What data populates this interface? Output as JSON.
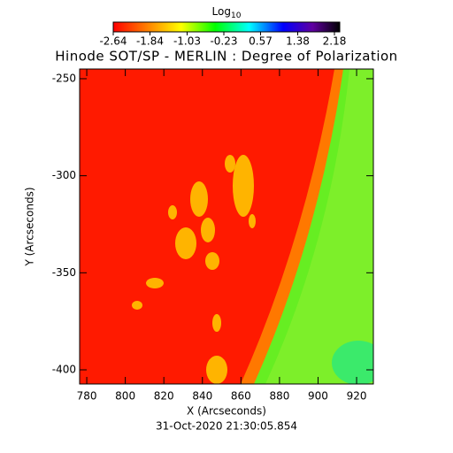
{
  "chart_data": {
    "type": "image",
    "title": "Hinode SOT/SP - MERLIN : Degree of Polarization",
    "colorbar": {
      "label": "Log",
      "label_sub": "10",
      "lim": [
        -2.64,
        2.18
      ],
      "ticks": [
        -2.64,
        -1.84,
        -1.03,
        -0.23,
        0.57,
        1.38,
        2.18
      ]
    },
    "xlabel": "X (Arcseconds)",
    "ylabel": "Y (Arcseconds)",
    "xlim": [
      776.3,
      928.7
    ],
    "ylim": [
      -407.3,
      -245
    ],
    "xticks": [
      780,
      800,
      820,
      840,
      860,
      880,
      900,
      920
    ],
    "yticks": [
      -250,
      -300,
      -350,
      -400
    ],
    "footer": "31-Oct-2020 21:30:05.854"
  }
}
